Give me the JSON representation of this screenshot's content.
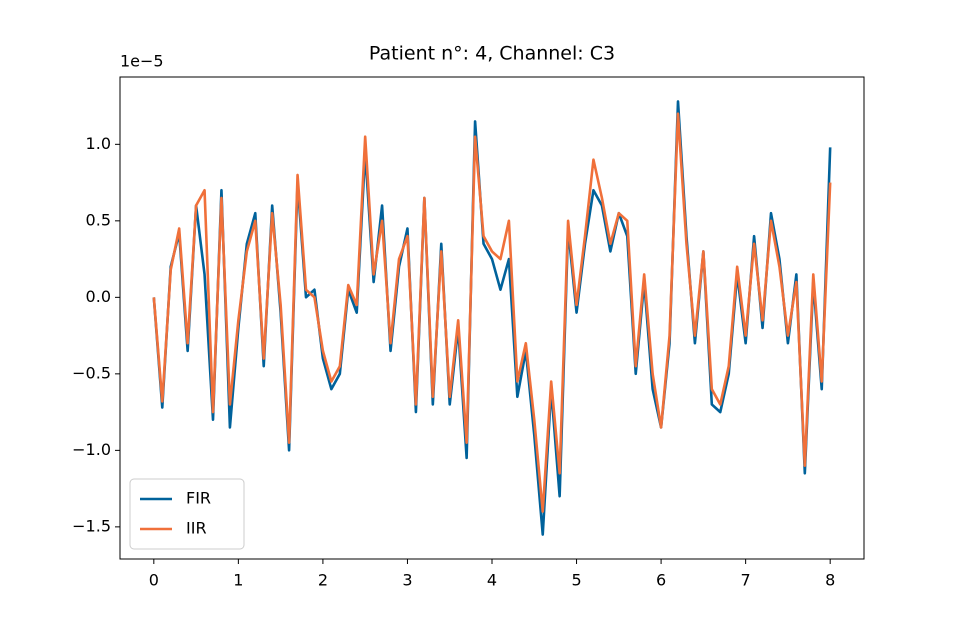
{
  "chart_data": {
    "type": "line",
    "title": "Patient n°: 4, Channel: C3",
    "offset_text": "1e−5",
    "x": [
      0,
      0.1,
      0.2,
      0.3,
      0.4,
      0.5,
      0.6,
      0.7,
      0.8,
      0.9,
      1,
      1.1,
      1.2,
      1.3,
      1.4,
      1.5,
      1.6,
      1.7,
      1.8,
      1.9,
      2,
      2.1,
      2.2,
      2.3,
      2.4,
      2.5,
      2.6,
      2.7,
      2.8,
      2.9,
      3,
      3.1,
      3.2,
      3.3,
      3.4,
      3.5,
      3.6,
      3.7,
      3.8,
      3.9,
      4,
      4.1,
      4.2,
      4.3,
      4.4,
      4.5,
      4.6,
      4.7,
      4.8,
      4.9,
      5,
      5.1,
      5.2,
      5.3,
      5.4,
      5.5,
      5.6,
      5.7,
      5.8,
      5.9,
      6,
      6.1,
      6.2,
      6.3,
      6.4,
      6.5,
      6.6,
      6.7,
      6.8,
      6.9,
      7,
      7.1,
      7.2,
      7.3,
      7.4,
      7.5,
      7.6,
      7.7,
      7.8,
      7.9,
      8
    ],
    "series": [
      {
        "name": "FIR",
        "color": "#00629b",
        "values": [
          0,
          -0.72,
          0.2,
          0.42,
          -0.35,
          0.6,
          0.15,
          -0.8,
          0.7,
          -0.85,
          -0.2,
          0.35,
          0.55,
          -0.45,
          0.6,
          -0.1,
          -1.0,
          0.75,
          0.0,
          0.05,
          -0.4,
          -0.6,
          -0.5,
          0.05,
          -0.1,
          0.95,
          0.1,
          0.6,
          -0.35,
          0.2,
          0.45,
          -0.75,
          0.65,
          -0.7,
          0.35,
          -0.7,
          -0.2,
          -1.05,
          1.15,
          0.35,
          0.25,
          0.05,
          0.25,
          -0.65,
          -0.35,
          -0.9,
          -1.55,
          -0.6,
          -1.3,
          0.45,
          -0.1,
          0.35,
          0.7,
          0.6,
          0.3,
          0.55,
          0.4,
          -0.5,
          0.1,
          -0.6,
          -0.85,
          -0.3,
          1.28,
          0.4,
          -0.3,
          0.3,
          -0.7,
          -0.75,
          -0.5,
          0.15,
          -0.3,
          0.4,
          -0.2,
          0.55,
          0.25,
          -0.3,
          0.15,
          -1.15,
          0.1,
          -0.6,
          0.98
        ]
      },
      {
        "name": "IIR",
        "color": "#f0703a",
        "values": [
          0,
          -0.68,
          0.18,
          0.45,
          -0.3,
          0.6,
          0.7,
          -0.75,
          0.65,
          -0.7,
          -0.15,
          0.3,
          0.5,
          -0.4,
          0.55,
          -0.05,
          -0.95,
          0.8,
          0.05,
          0.0,
          -0.35,
          -0.55,
          -0.45,
          0.08,
          -0.05,
          1.05,
          0.15,
          0.5,
          -0.3,
          0.25,
          0.4,
          -0.7,
          0.65,
          -0.65,
          0.3,
          -0.65,
          -0.15,
          -0.95,
          1.05,
          0.4,
          0.3,
          0.25,
          0.5,
          -0.55,
          -0.3,
          -0.8,
          -1.4,
          -0.55,
          -1.15,
          0.5,
          -0.05,
          0.4,
          0.9,
          0.65,
          0.35,
          0.55,
          0.5,
          -0.45,
          0.15,
          -0.5,
          -0.85,
          -0.25,
          1.2,
          0.35,
          -0.25,
          0.3,
          -0.6,
          -0.7,
          -0.45,
          0.2,
          -0.25,
          0.35,
          -0.15,
          0.5,
          0.2,
          -0.25,
          0.1,
          -1.1,
          0.15,
          -0.55,
          0.75
        ]
      }
    ],
    "xlim": [
      -0.4,
      8.4
    ],
    "ylim": [
      -1.71,
      1.44
    ],
    "xticks": [
      0,
      1,
      2,
      3,
      4,
      5,
      6,
      7,
      8
    ],
    "yticks": [
      {
        "value": -1.5,
        "label": "−1.5"
      },
      {
        "value": -1.0,
        "label": "−1.0"
      },
      {
        "value": -0.5,
        "label": "−0.5"
      },
      {
        "value": 0,
        "label": "0.0"
      },
      0.5,
      {
        "value": 1.0,
        "label": "1.0"
      }
    ],
    "legend": "lower left",
    "grid": false
  }
}
